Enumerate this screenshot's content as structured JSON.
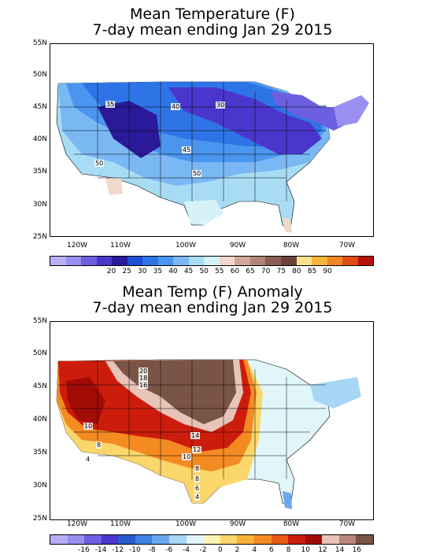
{
  "map1": {
    "title_line1": "Mean Temperature (F)",
    "title_line2": "7-day mean ending Jan 29 2015",
    "lat_labels": [
      "55N",
      "50N",
      "45N",
      "40N",
      "35N",
      "30N",
      "25N"
    ],
    "lon_labels": [
      "120W",
      "110W",
      "100W",
      "90W",
      "80W",
      "70W"
    ],
    "contour_labels": [
      "35",
      "40",
      "30",
      "45",
      "50",
      "50"
    ],
    "legend_ticks": [
      "20",
      "25",
      "30",
      "35",
      "40",
      "45",
      "50",
      "55",
      "60",
      "65",
      "70",
      "75",
      "80",
      "85",
      "90"
    ],
    "legend_colors": [
      "#b9aef5",
      "#9a8ff0",
      "#6c5fe0",
      "#4a36cc",
      "#2a1a9a",
      "#1c4fd8",
      "#2f74e6",
      "#4a95ee",
      "#7ab8f4",
      "#a8dcf5",
      "#d6f2f8",
      "#f0d8cc",
      "#d0a898",
      "#b08478",
      "#8a5e54",
      "#6a443c",
      "#f8e38c",
      "#f7b53e",
      "#f08524",
      "#e04a14",
      "#b81208"
    ]
  },
  "map2": {
    "title_line1": "Mean Temp (F) Anomaly",
    "title_line2": "7-day mean ending Jan 29 2015",
    "lat_labels": [
      "55N",
      "50N",
      "45N",
      "40N",
      "35N",
      "30N",
      "25N"
    ],
    "lon_labels": [
      "120W",
      "110W",
      "100W",
      "90W",
      "80W",
      "70W"
    ],
    "contour_labels": [
      "20",
      "18",
      "16",
      "10",
      "14",
      "12",
      "10",
      "8",
      "8",
      "6",
      "4",
      "8",
      "4"
    ],
    "legend_ticks": [
      "-16",
      "-14",
      "-12",
      "-10",
      "-8",
      "-6",
      "-4",
      "-2",
      "0",
      "2",
      "4",
      "6",
      "8",
      "10",
      "12",
      "14",
      "16"
    ],
    "legend_colors": [
      "#b9aef5",
      "#9a8ff0",
      "#6c5fe0",
      "#4a36cc",
      "#2a5ad0",
      "#3f82e6",
      "#6aa8f0",
      "#a8d6f5",
      "#e0f6fb",
      "#fdf3b4",
      "#fbd66a",
      "#f8b23a",
      "#f48a22",
      "#ea5a16",
      "#cc1d0c",
      "#a20c06",
      "#e8c4b8",
      "#b8867a",
      "#7a5446"
    ]
  }
}
